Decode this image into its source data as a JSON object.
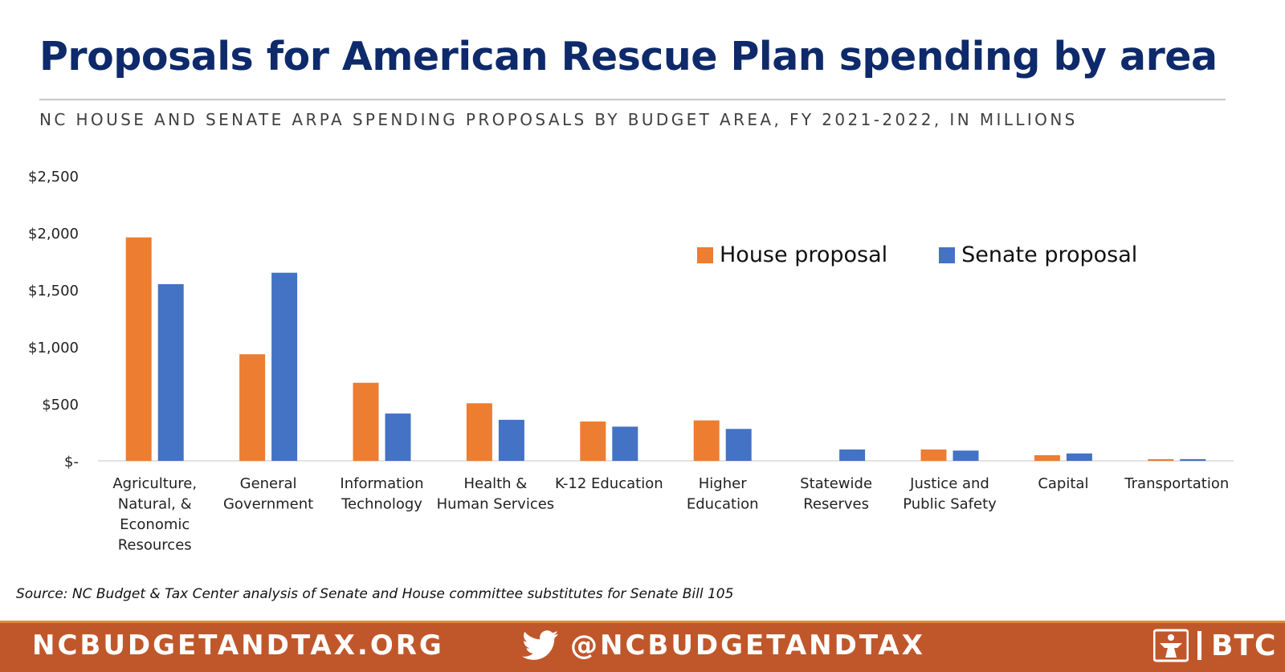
{
  "header": {
    "title": "Proposals for American Rescue Plan spending by area",
    "subtitle": "NC HOUSE AND SENATE ARPA SPENDING PROPOSALS BY BUDGET AREA, FY 2021-2022, IN MILLIONS"
  },
  "chart_data": {
    "type": "bar",
    "categories": [
      [
        "Agriculture,",
        "Natural, &",
        "Economic",
        "Resources"
      ],
      [
        "General",
        "Government"
      ],
      [
        "Information",
        "Technology"
      ],
      [
        "Health &",
        "Human Services"
      ],
      [
        "K-12 Education"
      ],
      [
        "Higher",
        "Education"
      ],
      [
        "Statewide",
        "Reserves"
      ],
      [
        "Justice and",
        "Public Safety"
      ],
      [
        "Capital"
      ],
      [
        "Transportation"
      ]
    ],
    "series": [
      {
        "name": "House proposal",
        "color": "#ed7d31",
        "values": [
          1960,
          935,
          685,
          505,
          345,
          355,
          0,
          100,
          50,
          15
        ]
      },
      {
        "name": "Senate proposal",
        "color": "#4472c4",
        "values": [
          1550,
          1650,
          415,
          360,
          300,
          280,
          100,
          90,
          65,
          15
        ]
      }
    ],
    "ylim": [
      0,
      2500
    ],
    "yticks": [
      0,
      500,
      1000,
      1500,
      2000,
      2500
    ],
    "ytick_labels": [
      "$-",
      "$500",
      "$1,000",
      "$1,500",
      "$2,000",
      "$2,500"
    ],
    "legend_position": "top-right",
    "grid": false
  },
  "source": "Source: NC Budget & Tax Center analysis of Senate and House committee substitutes for Senate Bill 105",
  "footer": {
    "website": "NCBUDGETANDTAX.ORG",
    "twitter_handle": "@NCBUDGETANDTAX",
    "logo_text": "BTC"
  }
}
